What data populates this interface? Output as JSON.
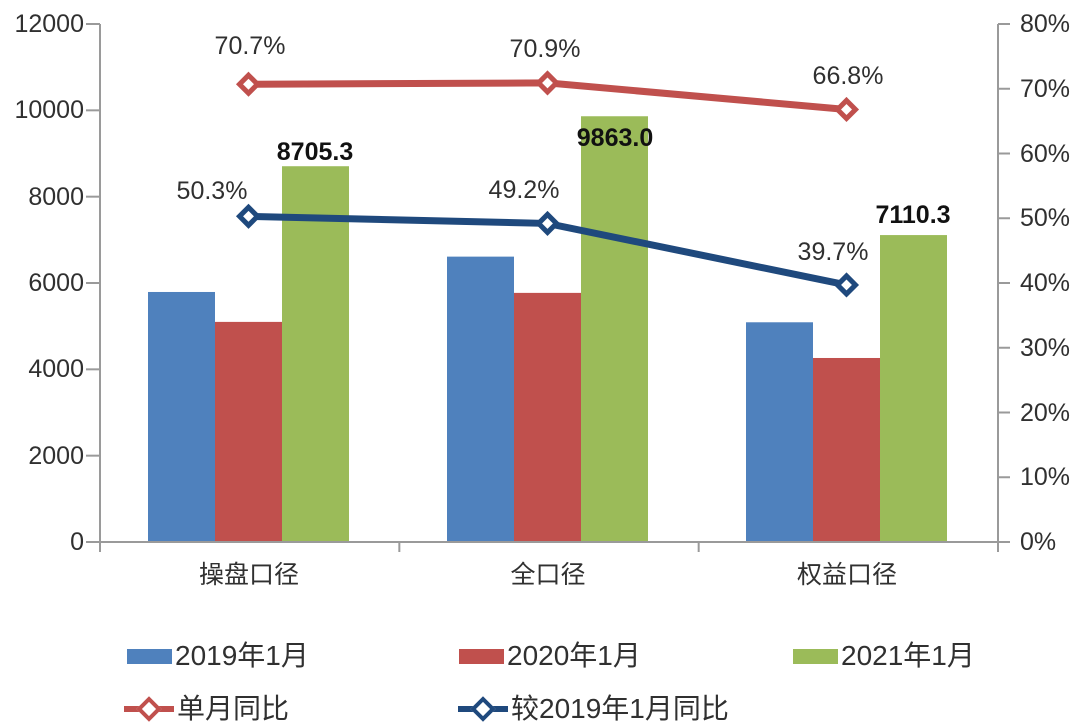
{
  "chart_data": {
    "type": "bar",
    "subtype": "grouped-bars-with-line-series-on-secondary-axis",
    "categories": [
      "操盘口径",
      "全口径",
      "权益口径"
    ],
    "bar_series": [
      {
        "name": "2019年1月",
        "color": "#4F81BD",
        "axis": "left",
        "values": [
          5792,
          6611,
          5090
        ]
      },
      {
        "name": "2020年1月",
        "color": "#C0504D",
        "axis": "left",
        "values": [
          5099,
          5771,
          4263
        ]
      },
      {
        "name": "2021年1月",
        "color": "#9BBB59",
        "axis": "left",
        "values": [
          8705.3,
          9863.0,
          7110.3
        ],
        "value_labels": [
          "8705.3",
          "9863.0",
          "7110.3"
        ]
      }
    ],
    "line_series": [
      {
        "name": "单月同比",
        "color": "#C0504D",
        "axis": "right",
        "marker": "diamond",
        "values": [
          70.7,
          70.9,
          66.8
        ],
        "value_labels": [
          "70.7%",
          "70.9%",
          "66.8%"
        ]
      },
      {
        "name": "较2019年1月同比",
        "color": "#1F497D",
        "axis": "right",
        "marker": "diamond",
        "values": [
          50.3,
          49.2,
          39.7
        ],
        "value_labels": [
          "50.3%",
          "49.2%",
          "39.7%"
        ]
      }
    ],
    "left_axis": {
      "min": 0,
      "max": 12000,
      "step": 2000,
      "tick_labels": [
        "12000",
        "10000",
        "8000",
        "6000",
        "4000",
        "2000",
        "0"
      ]
    },
    "right_axis": {
      "min": 0,
      "max": 80,
      "step": 10,
      "tick_labels": [
        "80%",
        "70%",
        "60%",
        "50%",
        "40%",
        "30%",
        "20%",
        "10%",
        "0%"
      ]
    },
    "grid": false,
    "legend_position": "bottom",
    "axis_line_color": "#9a9a9a"
  }
}
